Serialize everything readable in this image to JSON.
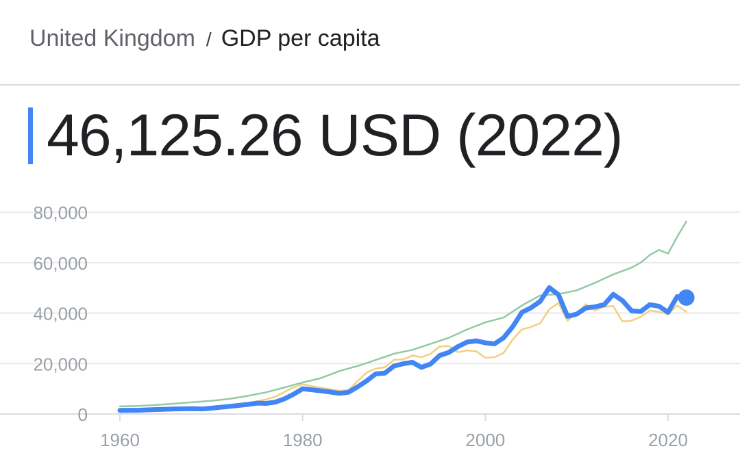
{
  "header": {
    "breadcrumb_country": "United Kingdom",
    "breadcrumb_separator": "/",
    "breadcrumb_metric": "GDP per capita",
    "headline_value": "46,125.26 USD (2022)"
  },
  "colors": {
    "primary_series": "#4285f4",
    "green_series": "#93c9a3",
    "orange_series": "#f1cf82",
    "gridline": "#e8eaed",
    "axis_label": "#9aa0a6",
    "accent": "#4285f4"
  },
  "chart_data": {
    "type": "line",
    "title": "",
    "xlabel": "",
    "ylabel": "",
    "xlim": [
      1960,
      2022
    ],
    "ylim": [
      0,
      80000
    ],
    "grid": true,
    "y_ticks": [
      0,
      20000,
      40000,
      60000,
      80000
    ],
    "y_tick_labels": [
      "0",
      "20,000",
      "40,000",
      "60,000",
      "80,000"
    ],
    "x_ticks": [
      1960,
      1980,
      2000,
      2020
    ],
    "x_tick_labels": [
      "1960",
      "1980",
      "2000",
      "2020"
    ],
    "highlight_point": {
      "x": 2022,
      "y": 46125.26
    },
    "series": [
      {
        "color": "#93c9a3",
        "x": [
          1960,
          1962,
          1964,
          1966,
          1968,
          1970,
          1972,
          1974,
          1976,
          1978,
          1980,
          1982,
          1984,
          1986,
          1988,
          1990,
          1992,
          1994,
          1996,
          1998,
          2000,
          2002,
          2004,
          2006,
          2008,
          2010,
          2012,
          2014,
          2016,
          2017,
          2018,
          2019,
          2020,
          2021,
          2022
        ],
        "y": [
          3000,
          3200,
          3600,
          4100,
          4700,
          5200,
          6000,
          7200,
          8600,
          10500,
          12500,
          14200,
          17000,
          19000,
          21400,
          23900,
          25400,
          27800,
          30200,
          33500,
          36300,
          38200,
          43000,
          47000,
          47500,
          49000,
          52000,
          55300,
          58000,
          60000,
          63000,
          65000,
          63600,
          70200,
          76300
        ]
      },
      {
        "color": "#f1cf82",
        "x": [
          1960,
          1962,
          1964,
          1966,
          1968,
          1970,
          1972,
          1974,
          1976,
          1977,
          1978,
          1979,
          1980,
          1981,
          1982,
          1983,
          1984,
          1985,
          1986,
          1987,
          1988,
          1989,
          1990,
          1991,
          1992,
          1993,
          1994,
          1995,
          1996,
          1997,
          1998,
          1999,
          2000,
          2001,
          2002,
          2003,
          2004,
          2005,
          2006,
          2007,
          2008,
          2009,
          2010,
          2011,
          2012,
          2013,
          2014,
          2015,
          2016,
          2017,
          2018,
          2019,
          2020,
          2021,
          2022
        ],
        "y": [
          1300,
          1500,
          1700,
          2000,
          2100,
          2300,
          3000,
          4200,
          5800,
          6800,
          8700,
          10500,
          11800,
          11000,
          10400,
          9800,
          9200,
          9400,
          13000,
          16400,
          18000,
          18500,
          21500,
          21600,
          23200,
          22500,
          23800,
          26800,
          26900,
          24500,
          25200,
          24900,
          22300,
          22500,
          24200,
          29500,
          33500,
          34500,
          36000,
          41500,
          44000,
          37000,
          40000,
          43500,
          41000,
          42500,
          42800,
          36700,
          37000,
          38500,
          41000,
          40500,
          39500,
          43000,
          40500
        ]
      },
      {
        "color": "#4285f4",
        "x": [
          1960,
          1962,
          1964,
          1966,
          1968,
          1969,
          1970,
          1972,
          1974,
          1975,
          1976,
          1977,
          1978,
          1979,
          1980,
          1981,
          1982,
          1983,
          1984,
          1985,
          1986,
          1987,
          1988,
          1989,
          1990,
          1991,
          1992,
          1993,
          1994,
          1995,
          1996,
          1997,
          1998,
          1999,
          2000,
          2001,
          2002,
          2003,
          2004,
          2005,
          2006,
          2007,
          2008,
          2009,
          2010,
          2011,
          2012,
          2013,
          2014,
          2015,
          2016,
          2017,
          2018,
          2019,
          2020,
          2021,
          2022
        ],
        "y": [
          1400,
          1500,
          1750,
          2000,
          2100,
          2000,
          2300,
          3000,
          3800,
          4300,
          4200,
          4700,
          6000,
          7800,
          10000,
          9600,
          9200,
          8700,
          8200,
          8600,
          10700,
          13100,
          15900,
          16200,
          19000,
          19900,
          20500,
          18500,
          19800,
          23200,
          24400,
          26700,
          28500,
          29000,
          28200,
          27800,
          30200,
          34600,
          40300,
          42100,
          44600,
          50100,
          47300,
          38700,
          39600,
          42000,
          42500,
          43300,
          47400,
          45000,
          40900,
          40600,
          43300,
          42700,
          40300,
          46500,
          46125
        ]
      }
    ]
  }
}
